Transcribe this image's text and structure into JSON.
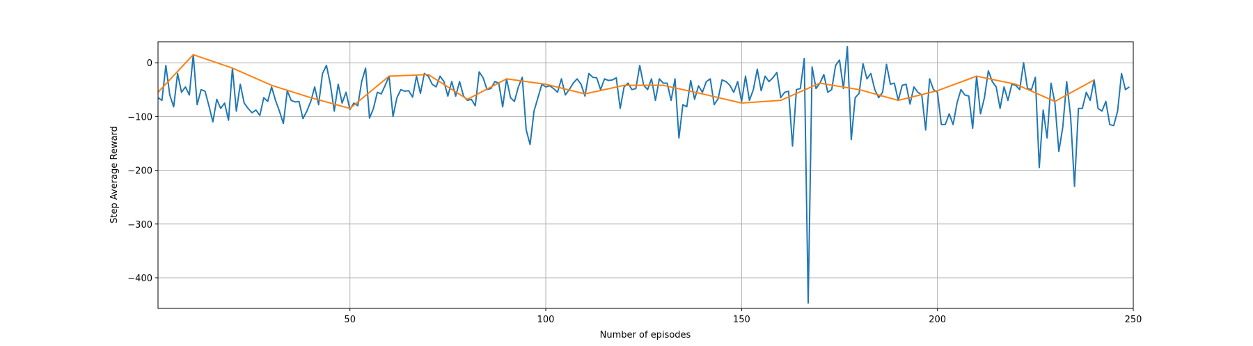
{
  "chart_data": {
    "type": "line",
    "xlabel": "Number of episodes",
    "ylabel": "Step Average Reward",
    "xlim": [
      1,
      250
    ],
    "ylim": [
      -457,
      39
    ],
    "xticks": [
      50,
      100,
      150,
      200,
      250
    ],
    "yticks": [
      {
        "value": -400,
        "label": "−400"
      },
      {
        "value": -300,
        "label": "−300"
      },
      {
        "value": -200,
        "label": "−200"
      },
      {
        "value": -100,
        "label": "−100"
      },
      0
    ],
    "grid": true,
    "series": [
      {
        "color": "#1f77b4",
        "x": [
          1,
          2,
          3,
          4,
          5,
          6,
          7,
          8,
          9,
          10,
          11,
          12,
          13,
          14,
          15,
          16,
          17,
          18,
          19,
          20,
          21,
          22,
          23,
          24,
          25,
          26,
          27,
          28,
          29,
          30,
          31,
          32,
          33,
          34,
          35,
          36,
          37,
          38,
          39,
          40,
          41,
          42,
          43,
          44,
          45,
          46,
          47,
          48,
          49,
          50,
          51,
          52,
          53,
          54,
          55,
          56,
          57,
          58,
          59,
          60,
          61,
          62,
          63,
          64,
          65,
          66,
          67,
          68,
          69,
          70,
          71,
          72,
          73,
          74,
          75,
          76,
          77,
          78,
          79,
          80,
          81,
          82,
          83,
          84,
          85,
          86,
          87,
          88,
          89,
          90,
          91,
          92,
          93,
          94,
          95,
          96,
          97,
          98,
          99,
          100,
          101,
          102,
          103,
          104,
          105,
          106,
          107,
          108,
          109,
          110,
          111,
          112,
          113,
          114,
          115,
          116,
          117,
          118,
          119,
          120,
          121,
          122,
          123,
          124,
          125,
          126,
          127,
          128,
          129,
          130,
          131,
          132,
          133,
          134,
          135,
          136,
          137,
          138,
          139,
          140,
          141,
          142,
          143,
          144,
          145,
          146,
          147,
          148,
          149,
          150,
          151,
          152,
          153,
          154,
          155,
          156,
          157,
          158,
          159,
          160,
          161,
          162,
          163,
          164,
          165,
          166,
          167,
          168,
          169,
          170,
          171,
          172,
          173,
          174,
          175,
          176,
          177,
          178,
          179,
          180,
          181,
          182,
          183,
          184,
          185,
          186,
          187,
          188,
          189,
          190,
          191,
          192,
          193,
          194,
          195,
          196,
          197,
          198,
          199,
          200,
          201,
          202,
          203,
          204,
          205,
          206,
          207,
          208,
          209,
          210,
          211,
          212,
          213,
          214,
          215,
          216,
          217,
          218,
          219,
          220,
          221,
          222,
          223,
          224,
          225,
          226,
          227,
          228,
          229,
          230,
          231,
          232,
          233,
          234,
          235,
          236,
          237,
          238,
          239,
          240,
          241,
          242,
          243,
          244,
          245,
          246,
          247,
          248,
          249
        ],
        "values": [
          -65,
          -70,
          -5,
          -60,
          -82,
          -20,
          -55,
          -45,
          -60,
          15,
          -78,
          -50,
          -53,
          -80,
          -110,
          -68,
          -85,
          -75,
          -107,
          -10,
          -90,
          -40,
          -75,
          -85,
          -93,
          -88,
          -98,
          -65,
          -72,
          -45,
          -70,
          -90,
          -113,
          -52,
          -70,
          -73,
          -72,
          -104,
          -90,
          -72,
          -45,
          -78,
          -20,
          -5,
          -40,
          -90,
          -40,
          -75,
          -55,
          -87,
          -75,
          -80,
          -35,
          -10,
          -103,
          -85,
          -55,
          -58,
          -42,
          -25,
          -100,
          -65,
          -50,
          -53,
          -52,
          -64,
          -25,
          -57,
          -20,
          -25,
          -40,
          -45,
          -25,
          -35,
          -62,
          -35,
          -62,
          -35,
          -62,
          -70,
          -68,
          -80,
          -17,
          -28,
          -50,
          -48,
          -35,
          -38,
          -82,
          -30,
          -65,
          -72,
          -45,
          -27,
          -125,
          -152,
          -90,
          -65,
          -40,
          -45,
          -43,
          -48,
          -55,
          -30,
          -60,
          -50,
          -38,
          -30,
          -40,
          -62,
          -20,
          -27,
          -28,
          -50,
          -30,
          -33,
          -32,
          -28,
          -85,
          -45,
          -38,
          -50,
          -48,
          -5,
          -42,
          -50,
          -30,
          -70,
          -30,
          -38,
          -38,
          -70,
          -30,
          -140,
          -78,
          -82,
          -33,
          -68,
          -43,
          -55,
          -35,
          -30,
          -78,
          -67,
          -32,
          -35,
          -42,
          -55,
          -35,
          -72,
          -25,
          -70,
          -50,
          -12,
          -52,
          -25,
          -35,
          -28,
          -18,
          -65,
          -55,
          -53,
          -155,
          -50,
          -48,
          8,
          -447,
          -8,
          -48,
          -38,
          -22,
          -55,
          -50,
          -5,
          5,
          -48,
          30,
          -143,
          -65,
          -57,
          -2,
          -30,
          -20,
          -50,
          -65,
          -55,
          -3,
          -40,
          -38,
          -70,
          -42,
          -40,
          -77,
          -45,
          -55,
          -60,
          -125,
          -30,
          -50,
          -55,
          -115,
          -115,
          -95,
          -115,
          -75,
          -50,
          -60,
          -62,
          -122,
          -25,
          -95,
          -65,
          -15,
          -35,
          -45,
          -85,
          -45,
          -70,
          -40,
          -42,
          -50,
          0,
          -48,
          -50,
          -27,
          -195,
          -88,
          -140,
          -38,
          -75,
          -165,
          -120,
          -35,
          -100,
          -230,
          -85,
          -85,
          -55,
          -70,
          -32,
          -85,
          -90,
          -72,
          -115,
          -117,
          -90,
          -20,
          -50,
          -45
        ]
      },
      {
        "color": "#ff7f0e",
        "x": [
          1,
          10,
          20,
          30,
          40,
          50,
          60,
          70,
          80,
          90,
          100,
          110,
          120,
          130,
          140,
          150,
          160,
          170,
          180,
          190,
          200,
          210,
          220,
          230,
          240
        ],
        "values": [
          -55,
          15,
          -10,
          -42,
          -65,
          -85,
          -25,
          -22,
          -68,
          -30,
          -40,
          -58,
          -42,
          -42,
          -58,
          -75,
          -70,
          -38,
          -50,
          -70,
          -52,
          -25,
          -40,
          -72,
          -32
        ]
      }
    ]
  }
}
